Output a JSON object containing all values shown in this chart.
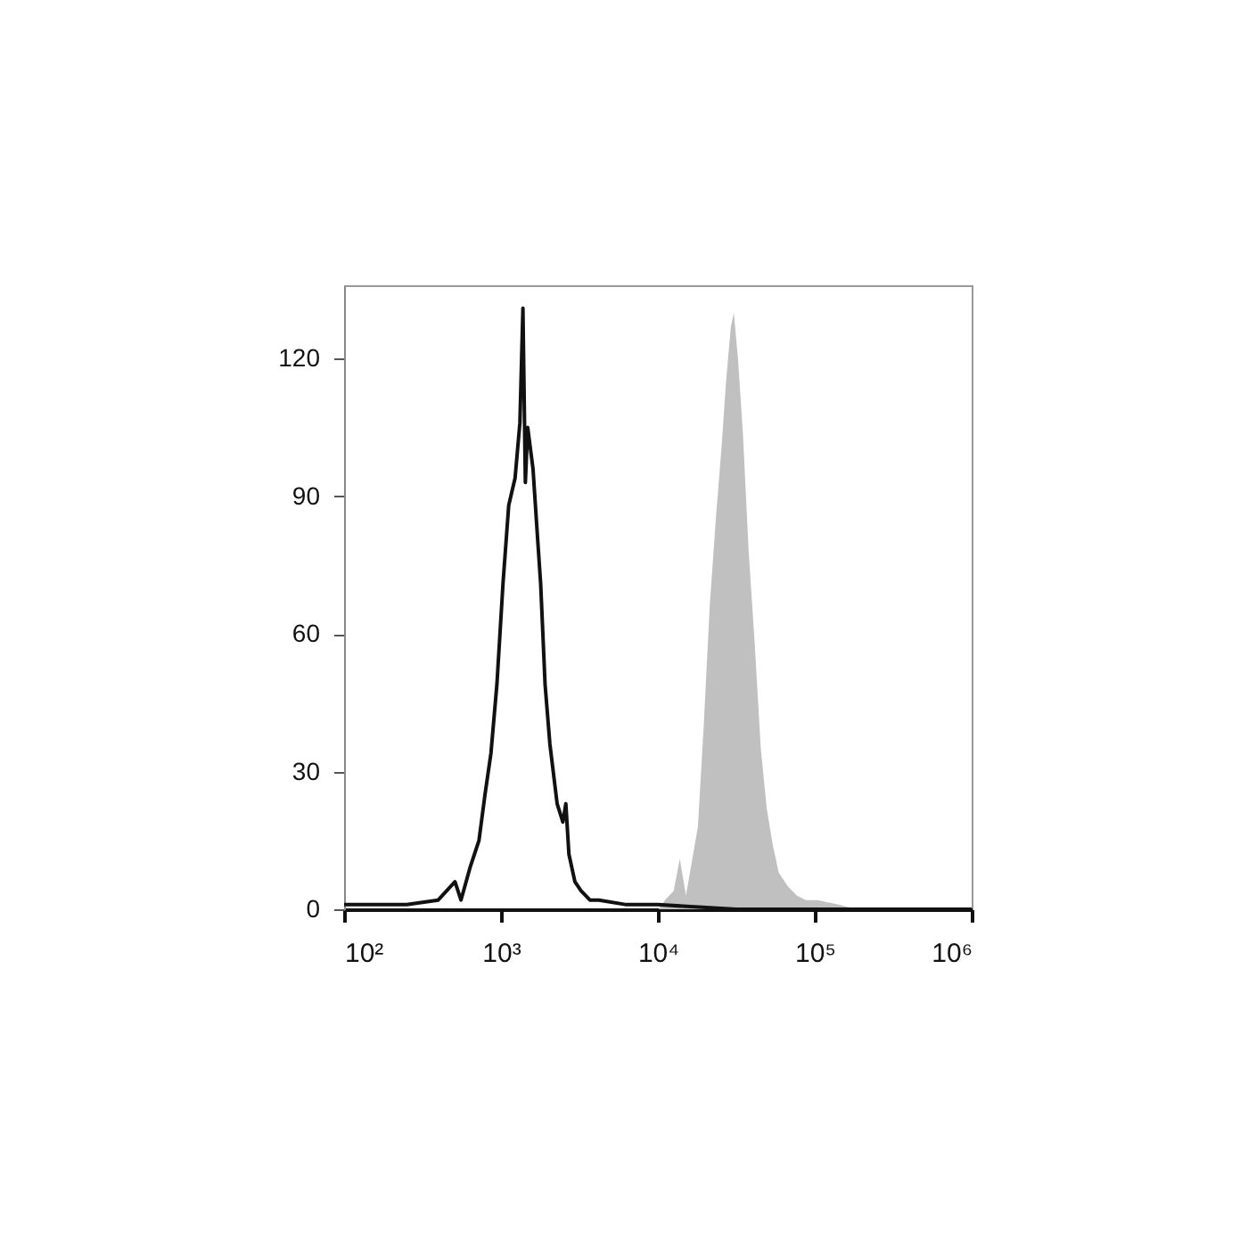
{
  "chart_data": {
    "type": "line",
    "grid": false,
    "log": "x",
    "xlim": [
      100,
      1000000
    ],
    "xticks": [
      {
        "value": 100,
        "label": "10²"
      },
      {
        "value": 1000,
        "label": "10³"
      },
      {
        "value": 10000,
        "label": "10⁴"
      },
      {
        "value": 100000,
        "label": "10⁵"
      },
      {
        "value": 1000000,
        "label": "10⁶"
      }
    ],
    "ylim": [
      0,
      136
    ],
    "yticks": [
      0,
      30,
      60,
      90,
      120
    ],
    "series": [
      {
        "type": "area",
        "color": "#c0c0c0",
        "x": [
          10100,
          11100,
          12600,
          13800,
          15100,
          16400,
          18000,
          19600,
          21400,
          23400,
          25500,
          27200,
          29200,
          30500,
          32400,
          34800,
          37900,
          41400,
          45300,
          49400,
          54000,
          58900,
          67300,
          76700,
          87700,
          104000,
          142000,
          186000
        ],
        "values": [
          0,
          2,
          4,
          11,
          3,
          10,
          18,
          40,
          66,
          85,
          101,
          115,
          127,
          130,
          120,
          104,
          78,
          58,
          35,
          22,
          14,
          8,
          5,
          3,
          2,
          2,
          1,
          0
        ]
      },
      {
        "color": "#111111",
        "x": [
          100,
          158,
          251,
          398,
          509,
          556,
          634,
          724,
          791,
          863,
          942,
          1030,
          1120,
          1230,
          1320,
          1380,
          1430,
          1480,
          1600,
          1710,
          1790,
          1910,
          2050,
          2280,
          2480,
          2590,
          2710,
          2960,
          3240,
          3690,
          4210,
          6310,
          10000,
          31600,
          100000,
          316000,
          1000000
        ],
        "values": [
          1,
          1,
          1,
          2,
          6,
          2,
          9,
          15,
          25,
          34,
          49,
          71,
          88,
          94,
          106,
          131,
          93,
          105,
          96,
          81,
          71,
          49,
          36,
          23,
          19,
          23,
          12,
          6,
          4,
          2,
          2,
          1,
          1,
          0,
          0,
          0,
          0
        ]
      }
    ]
  }
}
